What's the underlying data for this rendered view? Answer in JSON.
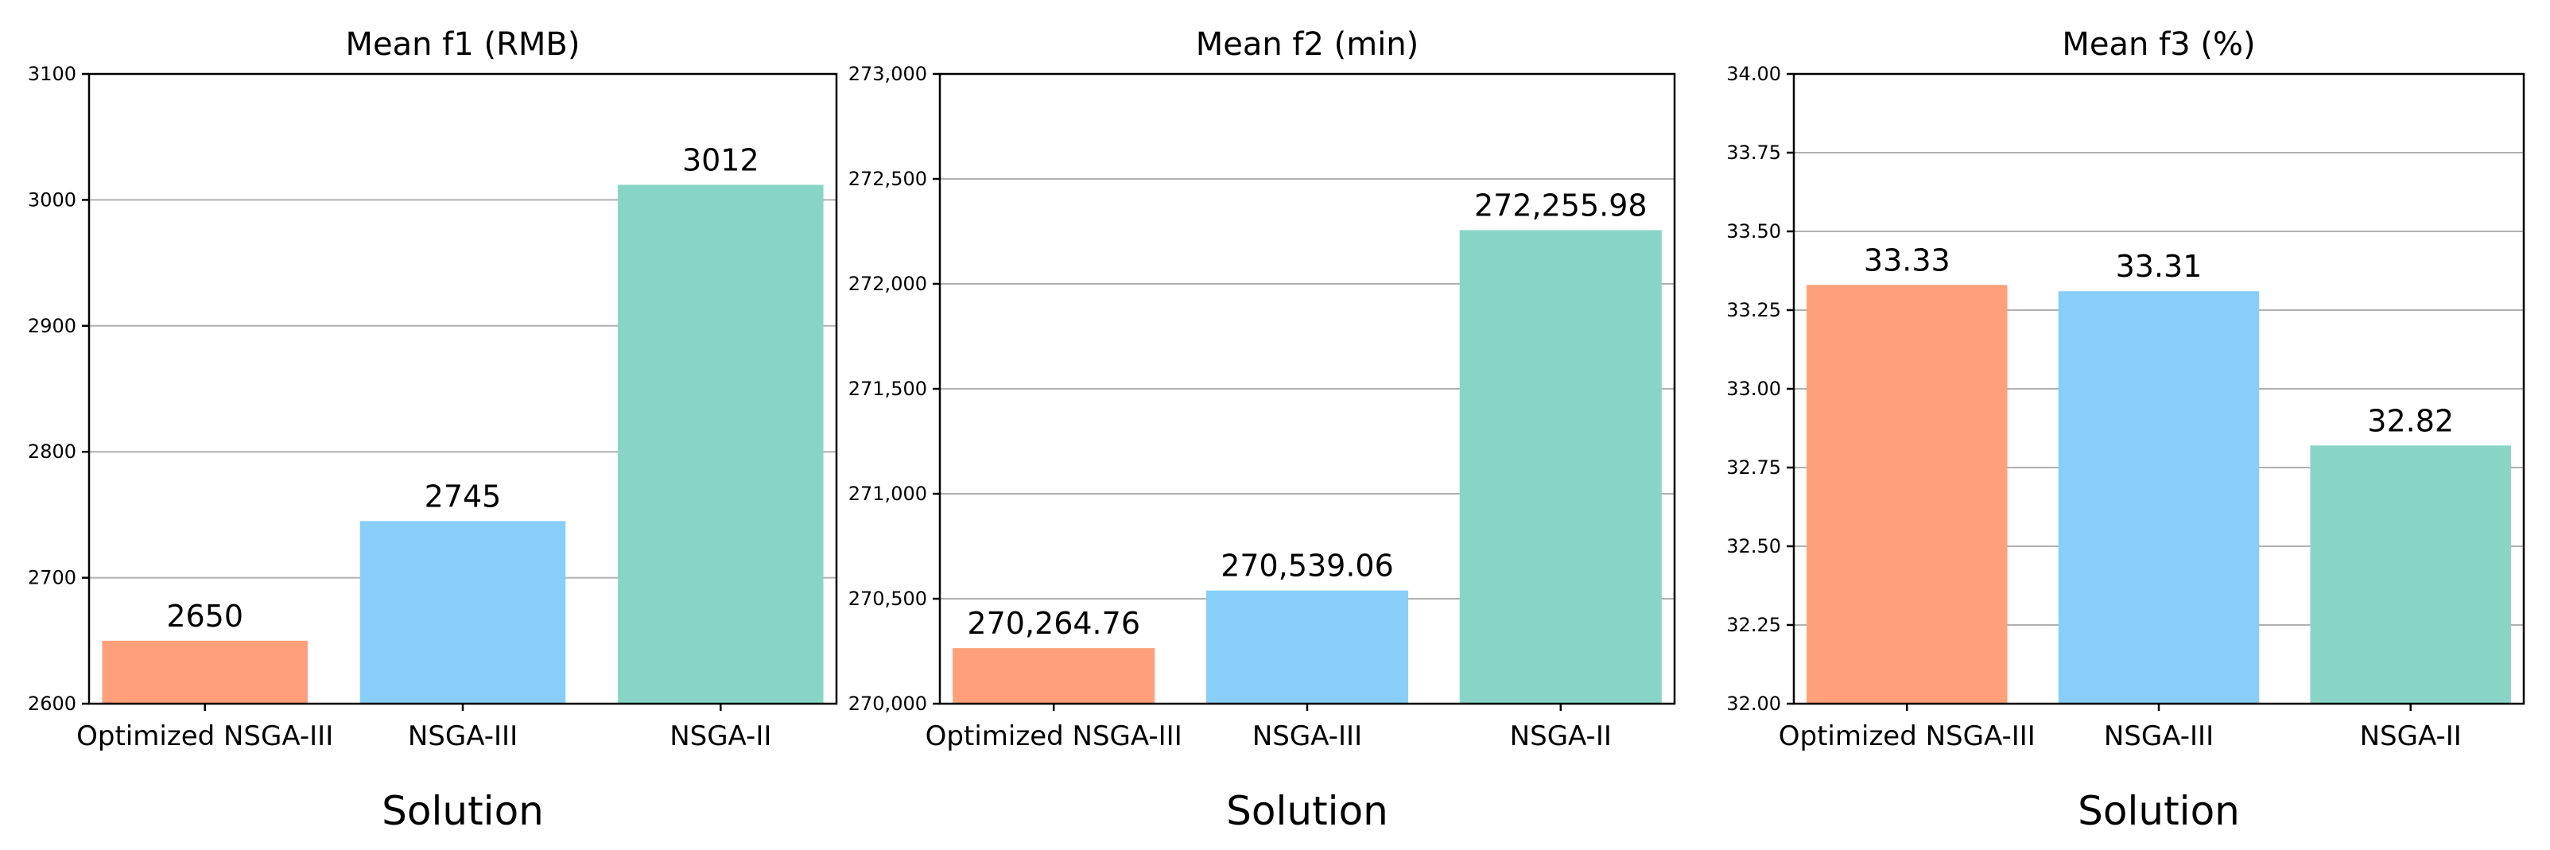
{
  "chart_data": [
    {
      "type": "bar",
      "title": "Mean f1 (RMB)",
      "xlabel": "Solution",
      "categories": [
        "Optimized NSGA-III",
        "NSGA-III",
        "NSGA-II"
      ],
      "values": [
        2650,
        2745,
        3012
      ],
      "data_labels": [
        "2650",
        "2745",
        "3012"
      ],
      "colors": [
        "#FFA07A",
        "#87CEFA",
        "#88D5C6"
      ],
      "ylim": [
        2600,
        3100
      ],
      "yticks": [
        2600,
        2700,
        2800,
        2900,
        3000,
        3100
      ],
      "ytick_labels": [
        "2600",
        "2700",
        "2800",
        "2900",
        "3000",
        "3100"
      ],
      "grid": "y"
    },
    {
      "type": "bar",
      "title": "Mean f2 (min)",
      "xlabel": "Solution",
      "categories": [
        "Optimized NSGA-III",
        "NSGA-III",
        "NSGA-II"
      ],
      "values": [
        270264.76,
        270539.06,
        272255.98
      ],
      "data_labels": [
        "270,264.76",
        "270,539.06",
        "272,255.98"
      ],
      "colors": [
        "#FFA07A",
        "#87CEFA",
        "#88D5C6"
      ],
      "ylim": [
        270000,
        273000
      ],
      "yticks": [
        270000,
        270500,
        271000,
        271500,
        272000,
        272500,
        273000
      ],
      "ytick_labels": [
        "270,000",
        "270,500",
        "271,000",
        "271,500",
        "272,000",
        "272,500",
        "273,000"
      ],
      "grid": "y"
    },
    {
      "type": "bar",
      "title": "Mean f3 (%)",
      "xlabel": "Solution",
      "categories": [
        "Optimized NSGA-III",
        "NSGA-III",
        "NSGA-II"
      ],
      "values": [
        33.33,
        33.31,
        32.82
      ],
      "data_labels": [
        "33.33",
        "33.31",
        "32.82"
      ],
      "colors": [
        "#FFA07A",
        "#87CEFA",
        "#88D5C6"
      ],
      "ylim": [
        32.0,
        34.0
      ],
      "yticks": [
        32.0,
        32.25,
        32.5,
        32.75,
        33.0,
        33.25,
        33.5,
        33.75,
        34.0
      ],
      "ytick_labels": [
        "32.00",
        "32.25",
        "32.50",
        "32.75",
        "33.00",
        "33.25",
        "33.50",
        "33.75",
        "34.00"
      ],
      "grid": "y"
    }
  ]
}
